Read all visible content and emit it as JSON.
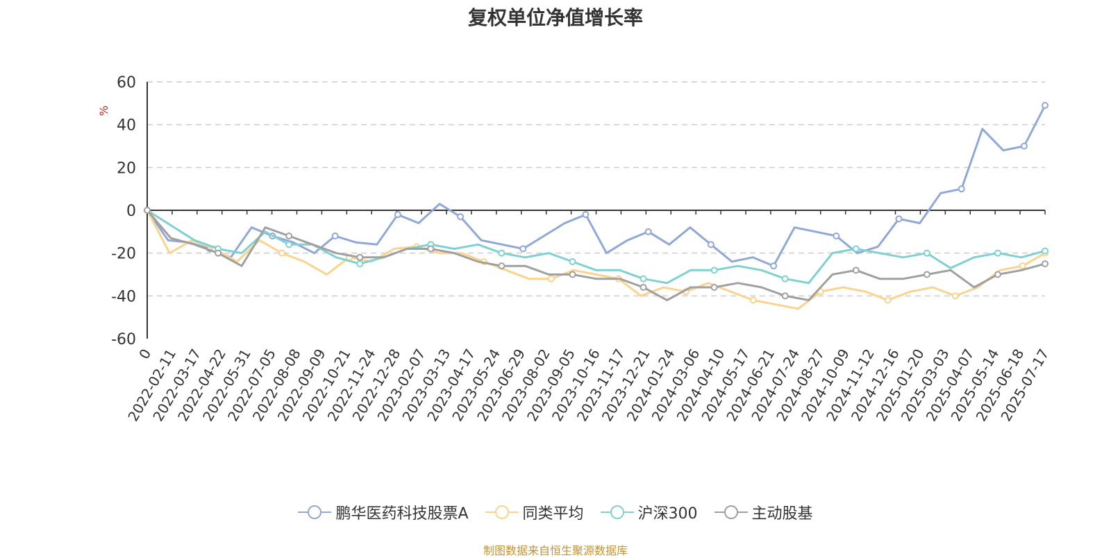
{
  "chart_data": {
    "type": "line",
    "title": "复权单位净值增长率",
    "ylabel": "%",
    "ylim": [
      -60,
      60
    ],
    "yticks": [
      60,
      40,
      20,
      0,
      -20,
      -40,
      -60
    ],
    "x_tick_labels": [
      "0",
      "2022-02-11",
      "2022-03-17",
      "2022-04-22",
      "2022-05-31",
      "2022-07-05",
      "2022-08-08",
      "2022-09-09",
      "2022-10-21",
      "2022-11-24",
      "2022-12-28",
      "2023-02-07",
      "2023-03-13",
      "2023-04-17",
      "2023-05-24",
      "2023-06-29",
      "2023-08-02",
      "2023-09-05",
      "2023-10-16",
      "2023-11-17",
      "2023-12-21",
      "2024-01-24",
      "2024-03-06",
      "2024-04-10",
      "2024-05-17",
      "2024-06-21",
      "2024-07-24",
      "2024-08-27",
      "2024-10-09",
      "2024-11-12",
      "2024-12-16",
      "2025-01-20",
      "2025-03-03",
      "2025-04-07",
      "2025-05-14",
      "2025-06-18",
      "2025-07-17"
    ],
    "grid": true,
    "legend_position": "bottom",
    "series": [
      {
        "name": "鹏华医药科技股票A",
        "color": "#8fa8d8",
        "values": [
          0,
          -14,
          -15,
          -18,
          -22,
          -8,
          -12,
          -15,
          -20,
          -12,
          -15,
          -16,
          -2,
          -6,
          3,
          -3,
          -14,
          -16,
          -18,
          -12,
          -6,
          -2,
          -20,
          -14,
          -10,
          -16,
          -8,
          -16,
          -24,
          -22,
          -26,
          -8,
          -10,
          -12,
          -20,
          -17,
          -4,
          -6,
          8,
          10,
          38,
          28,
          30,
          49
        ]
      },
      {
        "name": "同类平均",
        "color": "#fbd38d",
        "values": [
          0,
          -20,
          -14,
          -18,
          -24,
          -14,
          -20,
          -24,
          -30,
          -22,
          -24,
          -18,
          -17,
          -20,
          -20,
          -24,
          -28,
          -32,
          -32,
          -28,
          -30,
          -32,
          -40,
          -36,
          -38,
          -34,
          -38,
          -42,
          -44,
          -46,
          -38,
          -36,
          -38,
          -42,
          -38,
          -36,
          -40,
          -36,
          -28,
          -26,
          -20
        ]
      },
      {
        "name": "沪深300",
        "color": "#7fd1d1",
        "values": [
          0,
          -7,
          -14,
          -18,
          -20,
          -10,
          -16,
          -16,
          -22,
          -25,
          -22,
          -18,
          -16,
          -18,
          -16,
          -20,
          -22,
          -20,
          -24,
          -28,
          -28,
          -32,
          -34,
          -28,
          -28,
          -26,
          -28,
          -32,
          -34,
          -20,
          -18,
          -20,
          -22,
          -20,
          -27,
          -22,
          -20,
          -22,
          -19
        ]
      },
      {
        "name": "主动股基",
        "color": "#a0a0a0",
        "values": [
          0,
          -13,
          -16,
          -20,
          -26,
          -8,
          -12,
          -16,
          -20,
          -22,
          -22,
          -18,
          -18,
          -20,
          -24,
          -26,
          -26,
          -30,
          -30,
          -32,
          -32,
          -36,
          -42,
          -36,
          -36,
          -34,
          -36,
          -40,
          -42,
          -30,
          -28,
          -32,
          -32,
          -30,
          -28,
          -36,
          -30,
          -28,
          -25
        ]
      }
    ]
  },
  "source_text": "制图数据来自恒生聚源数据库"
}
